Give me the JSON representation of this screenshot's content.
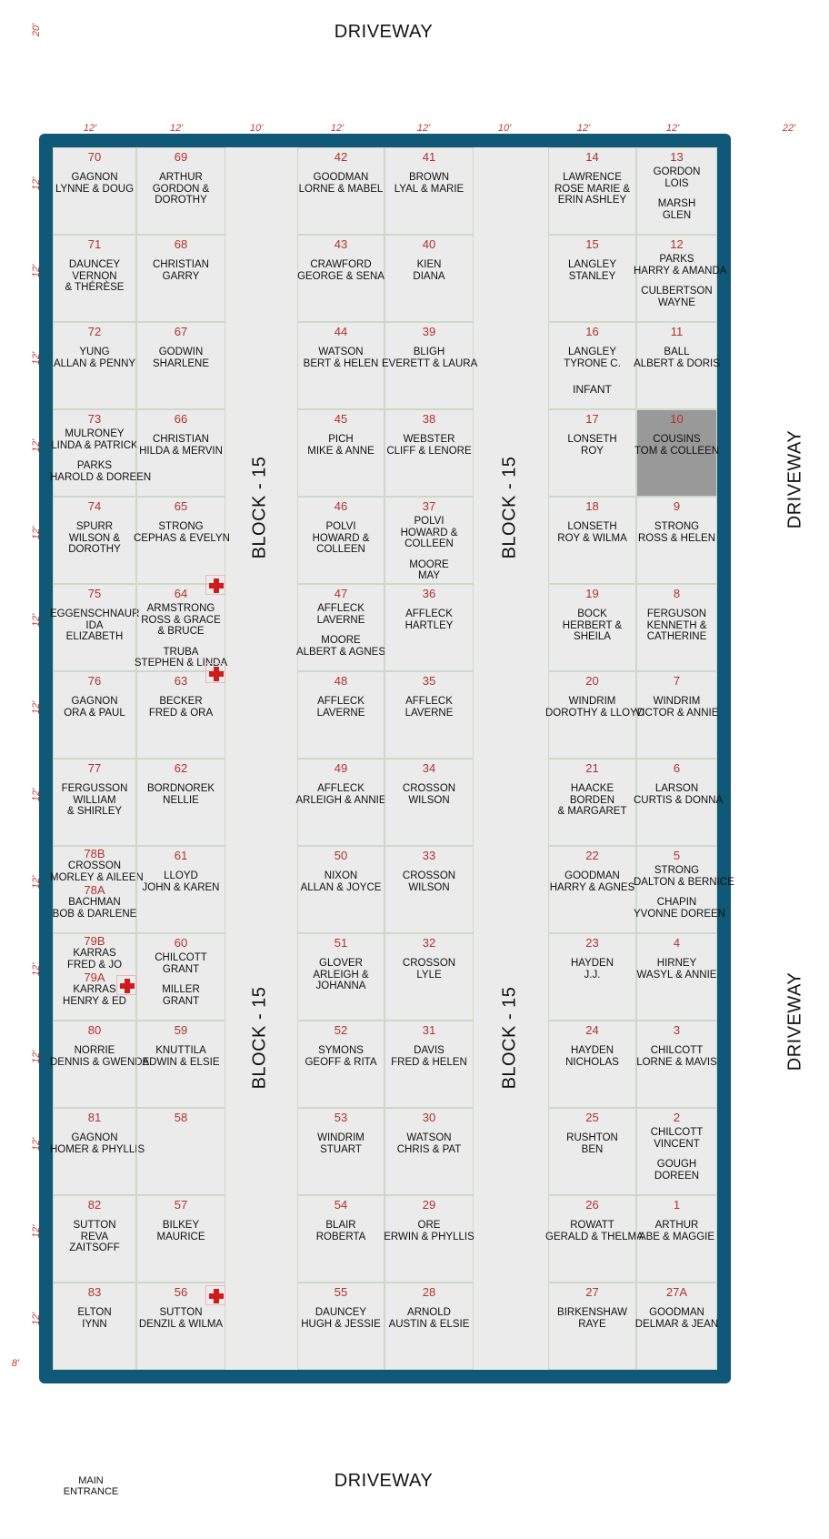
{
  "labels": {
    "driveway_top": "DRIVEWAY",
    "driveway_bottom": "DRIVEWAY",
    "driveway_right_upper": "DRIVEWAY",
    "driveway_right_lower": "DRIVEWAY",
    "main_entrance_line1": "MAIN",
    "main_entrance_line2": "ENTRANCE",
    "block_label": "BLOCK - 15"
  },
  "dimensions": {
    "top_left": "20'",
    "col_widths": [
      "12'",
      "12'",
      "10'",
      "12'",
      "12'",
      "10'",
      "12'",
      "12'",
      "22'"
    ],
    "row_height": "12'",
    "bottom_left": "8'"
  },
  "columns": [
    {
      "plots": [
        {
          "num": "70",
          "names": [
            "GAGNON",
            "LYNNE  &  DOUG"
          ]
        },
        {
          "num": "71",
          "names": [
            "DAUNCEY",
            "VERNON",
            "& THÉRÈSE"
          ]
        },
        {
          "num": "72",
          "names": [
            "YUNG",
            "ALLAN & PENNY"
          ]
        },
        {
          "num": "73",
          "names": [
            "MULRONEY",
            "LINDA & PATRICK",
            "PARKS",
            "HAROLD & DOREEN"
          ]
        },
        {
          "num": "74",
          "names": [
            "SPURR",
            "WILSON &",
            "DOROTHY"
          ]
        },
        {
          "num": "75",
          "names": [
            "EGGENSCHNAUR",
            "IDA",
            "ELIZABETH"
          ]
        },
        {
          "num": "76",
          "names": [
            "GAGNON",
            "ORA & PAUL"
          ]
        },
        {
          "num": "77",
          "names": [
            "FERGUSSON",
            "WILLIAM",
            "& SHIRLEY"
          ]
        },
        {
          "num": "78B",
          "names": [
            "CROSSON",
            "MORLEY & AILEEN"
          ],
          "num2": "78A",
          "names2": [
            "BACHMAN",
            "BOB & DARLENE"
          ]
        },
        {
          "num": "79B",
          "names": [
            "KARRAS",
            "FRED & JO"
          ],
          "num2": "79A",
          "names2": [
            "KARRAS",
            "HENRY & ED"
          ]
        },
        {
          "num": "80",
          "names": [
            "NORRIE",
            "DENNIS & GWENDA"
          ]
        },
        {
          "num": "81",
          "names": [
            "GAGNON",
            "HOMER & PHYLLIS"
          ]
        },
        {
          "num": "82",
          "names": [
            "SUTTON",
            "REVA",
            "ZAITSOFF"
          ]
        },
        {
          "num": "83",
          "names": [
            "ELTON",
            "IYNN"
          ]
        }
      ]
    },
    {
      "plots": [
        {
          "num": "69",
          "names": [
            "ARTHUR",
            "GORDON &",
            "DOROTHY"
          ]
        },
        {
          "num": "68",
          "names": [
            "CHRISTIAN",
            "GARRY"
          ]
        },
        {
          "num": "67",
          "names": [
            "GODWIN",
            "SHARLENE"
          ]
        },
        {
          "num": "66",
          "names": [
            "CHRISTIAN",
            "HILDA & MERVIN"
          ]
        },
        {
          "num": "65",
          "names": [
            "STRONG",
            "CEPHAS & EVELYN"
          ]
        },
        {
          "num": "64",
          "names": [
            "ARMSTRONG",
            "ROSS & GRACE",
            "& BRUCE",
            "TRUBA",
            "STEPHEN & LINDA"
          ]
        },
        {
          "num": "63",
          "names": [
            "BECKER",
            "FRED & ORA"
          ]
        },
        {
          "num": "62",
          "names": [
            "BORDNOREK",
            "NELLIE"
          ]
        },
        {
          "num": "61",
          "names": [
            "LLOYD",
            "JOHN & KAREN"
          ]
        },
        {
          "num": "60",
          "names": [
            "CHILCOTT",
            "GRANT",
            "MILLER",
            "GRANT"
          ]
        },
        {
          "num": "59",
          "names": [
            "KNUTTILA",
            "EDWIN & ELSIE"
          ]
        },
        {
          "num": "58",
          "names": []
        },
        {
          "num": "57",
          "names": [
            "BILKEY",
            "MAURICE"
          ]
        },
        {
          "num": "56",
          "names": [
            "SUTTON",
            "DENZIL & WILMA"
          ]
        }
      ]
    },
    {
      "plots": [
        {
          "num": "42",
          "names": [
            "GOODMAN",
            "LORNE & MABEL"
          ]
        },
        {
          "num": "43",
          "names": [
            "CRAWFORD",
            "GEORGE & SENA"
          ]
        },
        {
          "num": "44",
          "names": [
            "WATSON",
            "BERT & HELEN"
          ]
        },
        {
          "num": "45",
          "names": [
            "PICH",
            "MIKE & ANNE"
          ]
        },
        {
          "num": "46",
          "names": [
            "POLVI",
            "HOWARD &",
            "COLLEEN"
          ]
        },
        {
          "num": "47",
          "names": [
            "AFFLECK",
            "LAVERNE",
            "MOORE",
            "ALBERT & AGNES"
          ]
        },
        {
          "num": "48",
          "names": [
            "AFFLECK",
            "LAVERNE"
          ]
        },
        {
          "num": "49",
          "names": [
            "AFFLECK",
            "ARLEIGH & ANNIE"
          ]
        },
        {
          "num": "50",
          "names": [
            "NIXON",
            "ALLAN & JOYCE"
          ]
        },
        {
          "num": "51",
          "names": [
            "GLOVER",
            "ARLEIGH &",
            "JOHANNA"
          ]
        },
        {
          "num": "52",
          "names": [
            "SYMONS",
            "GEOFF & RITA"
          ]
        },
        {
          "num": "53",
          "names": [
            "WINDRIM",
            "STUART"
          ]
        },
        {
          "num": "54",
          "names": [
            "BLAIR",
            "ROBERTA"
          ]
        },
        {
          "num": "55",
          "names": [
            "DAUNCEY",
            "HUGH & JESSIE"
          ]
        }
      ]
    },
    {
      "plots": [
        {
          "num": "41",
          "names": [
            "BROWN",
            "LYAL & MARIE"
          ]
        },
        {
          "num": "40",
          "names": [
            "KIEN",
            "DIANA"
          ]
        },
        {
          "num": "39",
          "names": [
            "BLIGH",
            "EVERETT & LAURA"
          ]
        },
        {
          "num": "38",
          "names": [
            "WEBSTER",
            "CLIFF & LENORE"
          ]
        },
        {
          "num": "37",
          "names": [
            "POLVI",
            "HOWARD &",
            "COLLEEN",
            "MOORE",
            "MAY"
          ]
        },
        {
          "num": "36",
          "names": [
            "AFFLECK",
            "HARTLEY"
          ]
        },
        {
          "num": "35",
          "names": [
            "AFFLECK",
            "LAVERNE"
          ]
        },
        {
          "num": "34",
          "names": [
            "CROSSON",
            "WILSON"
          ]
        },
        {
          "num": "33",
          "names": [
            "CROSSON",
            "WILSON"
          ]
        },
        {
          "num": "32",
          "names": [
            "CROSSON",
            "LYLE"
          ]
        },
        {
          "num": "31",
          "names": [
            "DAVIS",
            "FRED & HELEN"
          ]
        },
        {
          "num": "30",
          "names": [
            "WATSON",
            "CHRIS & PAT"
          ]
        },
        {
          "num": "29",
          "names": [
            "ORE",
            "ERWIN & PHYLLIS"
          ]
        },
        {
          "num": "28",
          "names": [
            "ARNOLD",
            "AUSTIN & ELSIE"
          ]
        }
      ]
    },
    {
      "plots": [
        {
          "num": "14",
          "names": [
            "LAWRENCE",
            "ROSE MARIE &",
            "ERIN ASHLEY"
          ]
        },
        {
          "num": "15",
          "names": [
            "LANGLEY",
            "STANLEY"
          ]
        },
        {
          "num": "16",
          "names": [
            "LANGLEY",
            "TYRONE C.",
            "INFANT"
          ]
        },
        {
          "num": "17",
          "names": [
            "LONSETH",
            "ROY"
          ]
        },
        {
          "num": "18",
          "names": [
            "LONSETH",
            "ROY & WILMA"
          ]
        },
        {
          "num": "19",
          "names": [
            "BOCK",
            "HERBERT &",
            "SHEILA"
          ]
        },
        {
          "num": "20",
          "names": [
            "WINDRIM",
            "DOROTHY & LLOYD"
          ]
        },
        {
          "num": "21",
          "names": [
            "HAACKE",
            "BORDEN",
            "& MARGARET"
          ]
        },
        {
          "num": "22",
          "names": [
            "GOODMAN",
            "HARRY & AGNES"
          ]
        },
        {
          "num": "23",
          "names": [
            "HAYDEN",
            "J.J."
          ]
        },
        {
          "num": "24",
          "names": [
            "HAYDEN",
            "NICHOLAS"
          ]
        },
        {
          "num": "25",
          "names": [
            "RUSHTON",
            "BEN"
          ]
        },
        {
          "num": "26",
          "names": [
            "ROWATT",
            "GERALD & THELMA"
          ]
        },
        {
          "num": "27",
          "names": [
            "BIRKENSHAW",
            "RAYE"
          ]
        }
      ]
    },
    {
      "plots": [
        {
          "num": "13",
          "names": [
            "GORDON",
            "LOIS",
            "MARSH",
            "GLEN"
          ]
        },
        {
          "num": "12",
          "names": [
            "PARKS",
            "HARRY & AMANDA",
            "CULBERTSON",
            "WAYNE"
          ]
        },
        {
          "num": "11",
          "names": [
            "BALL",
            "ALBERT & DORIS"
          ]
        },
        {
          "num": "10",
          "names": [
            "COUSINS",
            "TOM & COLLEEN"
          ],
          "shaded": true
        },
        {
          "num": "9",
          "names": [
            "STRONG",
            "ROSS & HELEN"
          ]
        },
        {
          "num": "8",
          "names": [
            "FERGUSON",
            "KENNETH &",
            "CATHERINE"
          ]
        },
        {
          "num": "7",
          "names": [
            "WINDRIM",
            "VICTOR & ANNIE"
          ]
        },
        {
          "num": "6",
          "names": [
            "LARSON",
            "CURTIS & DONNA"
          ]
        },
        {
          "num": "5",
          "names": [
            "STRONG",
            "DALTON & BERNICE",
            "CHAPIN",
            "YVONNE DOREEN"
          ]
        },
        {
          "num": "4",
          "names": [
            "HIRNEY",
            "WASYL & ANNIE"
          ]
        },
        {
          "num": "3",
          "names": [
            "CHILCOTT",
            "LORNE & MAVIS"
          ]
        },
        {
          "num": "2",
          "names": [
            "CHILCOTT",
            "VINCENT",
            "GOUGH",
            "DOREEN"
          ]
        },
        {
          "num": "1",
          "names": [
            "ARTHUR",
            "ABE & MAGGIE"
          ]
        },
        {
          "num": "27A",
          "names": [
            "GOODMAN",
            "DELMAR & JEAN"
          ]
        }
      ]
    }
  ],
  "markers": [
    {
      "icon": "red-cross-icon",
      "plot": "64"
    },
    {
      "icon": "red-cross-icon",
      "plot": "63"
    },
    {
      "icon": "red-cross-icon",
      "plot": "79A"
    },
    {
      "icon": "red-cross-icon",
      "plot": "56"
    }
  ],
  "colors": {
    "border": "#0f5878",
    "plot_fill": "#ebebeb",
    "plot_number": "#b0322a",
    "dimension": "#c0392b",
    "shaded_plot": "#999999",
    "marker": "#d11a1a"
  }
}
